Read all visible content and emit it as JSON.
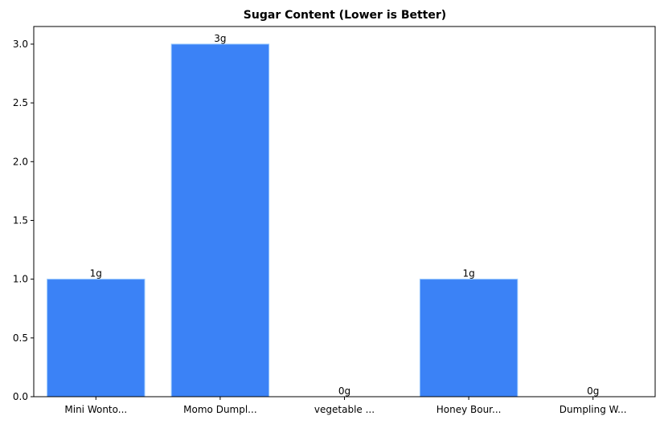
{
  "chart_data": {
    "type": "bar",
    "title": "Sugar Content (Lower is Better)",
    "xlabel": "",
    "ylabel": "",
    "categories": [
      "Mini Wonto...",
      "Momo Dumpl...",
      "vegetable ...",
      "Honey Bour...",
      "Dumpling W..."
    ],
    "values": [
      1,
      3,
      0,
      1,
      0
    ],
    "data_labels": [
      "1g",
      "3g",
      "0g",
      "1g",
      "0g"
    ],
    "ylim": [
      0,
      3.15
    ],
    "yticks": [
      0.0,
      0.5,
      1.0,
      1.5,
      2.0,
      2.5,
      3.0
    ],
    "ytick_labels": [
      "0.0",
      "0.5",
      "1.0",
      "1.5",
      "2.0",
      "2.5",
      "3.0"
    ],
    "grid": false,
    "colors": {
      "bar": "#3b82f6",
      "bar_edge": "#93c5fd"
    }
  }
}
